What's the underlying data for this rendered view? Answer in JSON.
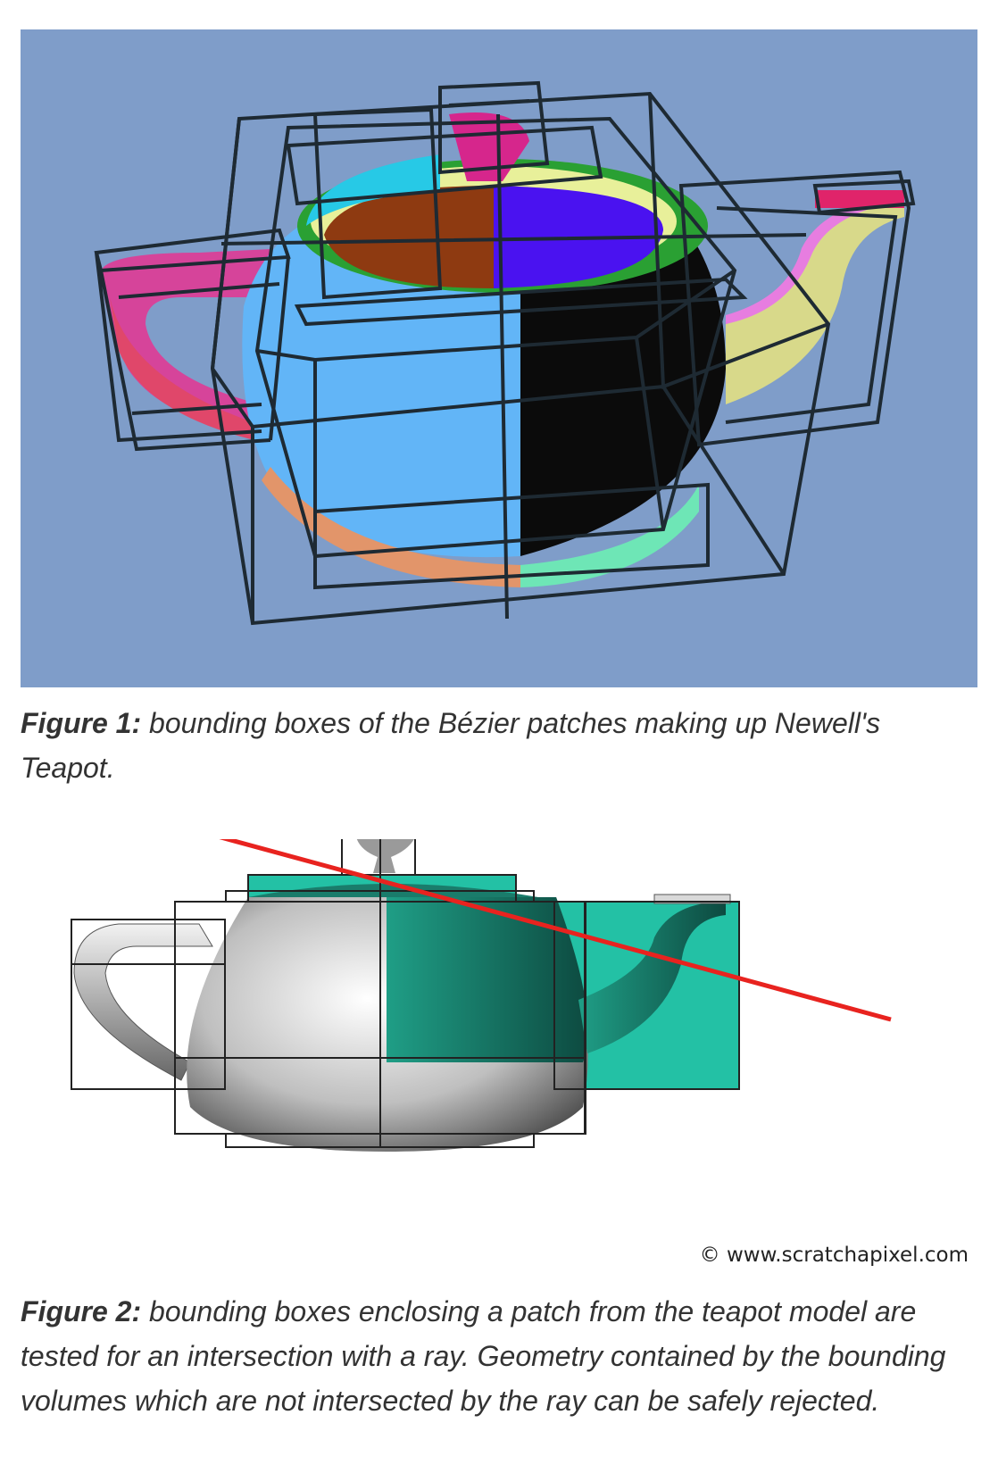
{
  "figure1": {
    "label": "Figure 1:",
    "caption": " bounding boxes of the Bézier patches making up Newell's Teapot."
  },
  "figure2": {
    "label": "Figure 2:",
    "caption": " bounding boxes enclosing a patch from the teapot model are tested for an intersection with a ray. Geometry contained by the bounding volumes which are not intersected by the ray can be safely rejected.",
    "credit": "© www.scratchapixel.com"
  },
  "colors": {
    "figure1_background": "#7f9dc9",
    "ray": "#e8231f",
    "hit_patch": "#23c1a5"
  }
}
